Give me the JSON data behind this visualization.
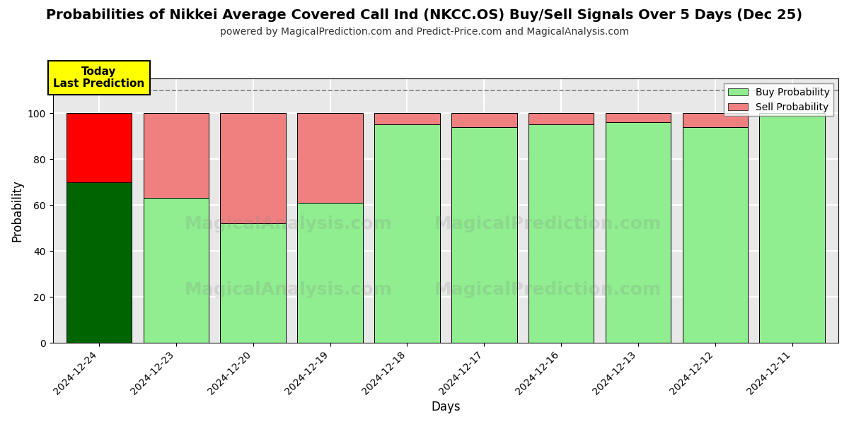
{
  "title": "Probabilities of Nikkei Average Covered Call Ind (NKCC.OS) Buy/Sell Signals Over 5 Days (Dec 25)",
  "subtitle": "powered by MagicalPrediction.com and Predict-Price.com and MagicalAnalysis.com",
  "xlabel": "Days",
  "ylabel": "Probability",
  "categories": [
    "2024-12-24",
    "2024-12-23",
    "2024-12-20",
    "2024-12-19",
    "2024-12-18",
    "2024-12-17",
    "2024-12-16",
    "2024-12-13",
    "2024-12-12",
    "2024-12-11"
  ],
  "buy_values": [
    70,
    63,
    52,
    61,
    95,
    94,
    95,
    96,
    94,
    100
  ],
  "sell_values": [
    30,
    37,
    48,
    39,
    5,
    6,
    5,
    4,
    6,
    0
  ],
  "first_bar_buy_color": "#006400",
  "first_bar_sell_color": "#FF0000",
  "other_buy_color": "#90EE90",
  "other_sell_color": "#F08080",
  "ylim": [
    0,
    115
  ],
  "yticks": [
    0,
    20,
    40,
    60,
    80,
    100
  ],
  "dashed_line_y": 110,
  "annotation_text": "Today\nLast Prediction",
  "annotation_bg": "#FFFF00",
  "legend_buy_label": "Buy Probability",
  "legend_sell_label": "Sell Probability",
  "plot_bg_color": "#e8e8e8",
  "grid_color": "#FFFFFF",
  "title_fontsize": 14,
  "subtitle_fontsize": 10
}
